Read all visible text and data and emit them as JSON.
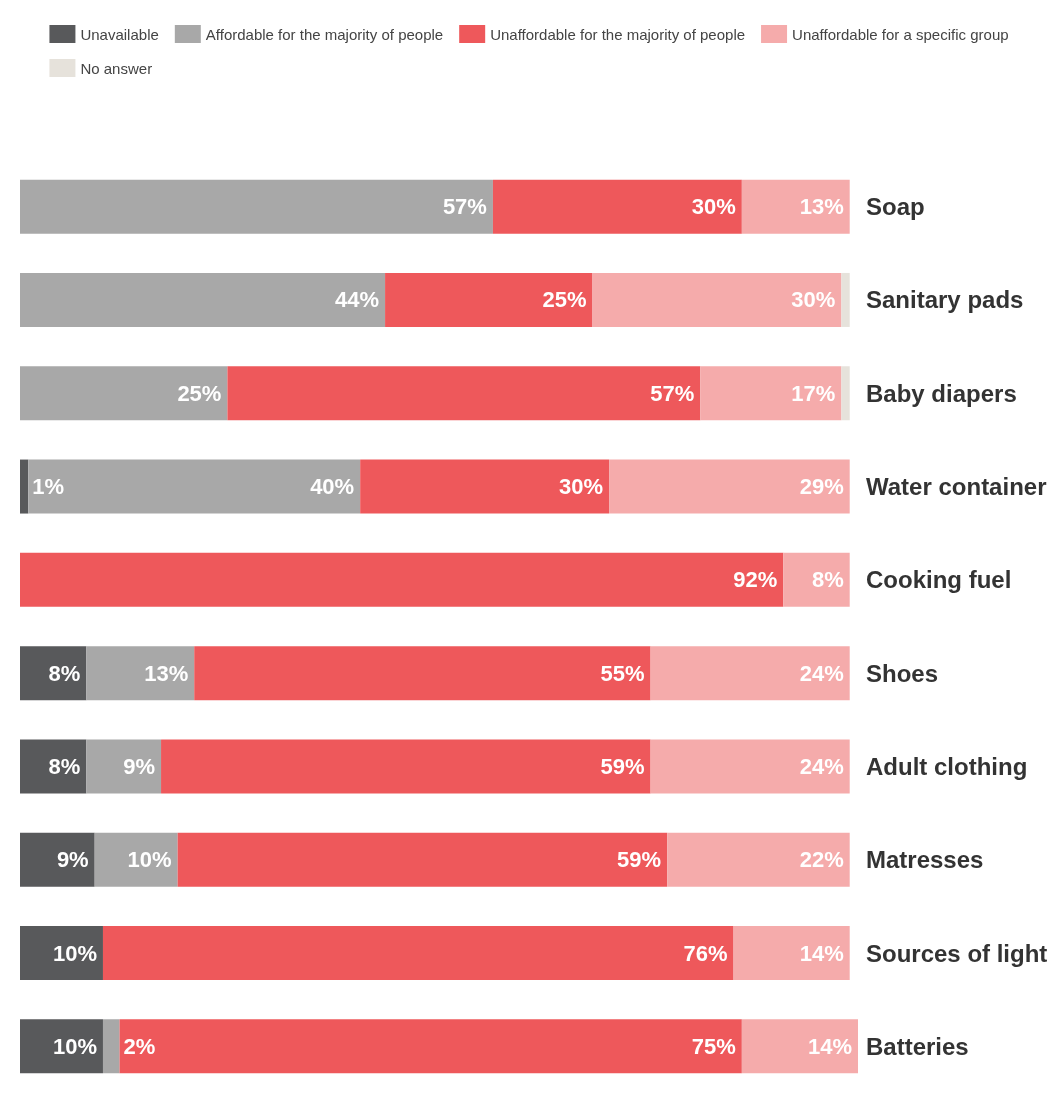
{
  "chart_data": {
    "type": "bar",
    "orientation": "horizontal",
    "stacked": true,
    "legend": "top",
    "categories": [
      "Soap",
      "Sanitary pads",
      "Baby diapers",
      "Water container",
      "Cooking fuel",
      "Shoes",
      "Adult clothing",
      "Matresses",
      "Sources of light",
      "Batteries"
    ],
    "series": [
      {
        "name": "Unavailable",
        "color": "#58595b",
        "values": [
          null,
          null,
          null,
          1,
          null,
          8,
          8,
          9,
          10,
          10
        ],
        "value_labels": [
          null,
          null,
          null,
          "1%",
          null,
          "8%",
          "8%",
          "9%",
          "10%",
          "10%"
        ]
      },
      {
        "name": "Affordable for the majority of people",
        "color": "#a8a8a8",
        "values": [
          57,
          44,
          25,
          40,
          null,
          13,
          9,
          10,
          null,
          2
        ],
        "value_labels": [
          "57%",
          "44%",
          "25%",
          "40%",
          null,
          "13%",
          "9%",
          "10%",
          null,
          "2%"
        ]
      },
      {
        "name": "Unaffordable for the majority of people",
        "color": "#ee585b",
        "values": [
          30,
          25,
          57,
          30,
          92,
          55,
          59,
          59,
          76,
          75
        ],
        "value_labels": [
          "30%",
          "25%",
          "57%",
          "30%",
          "92%",
          "55%",
          "59%",
          "59%",
          "76%",
          "75%"
        ]
      },
      {
        "name": "Unaffordable for a specific group",
        "color": "#f5abab",
        "values": [
          13,
          30,
          17,
          29,
          8,
          24,
          24,
          22,
          14,
          14
        ],
        "value_labels": [
          "13%",
          "30%",
          "17%",
          "29%",
          "8%",
          "24%",
          "24%",
          "22%",
          "14%",
          "14%"
        ]
      },
      {
        "name": "No answer",
        "color": "#e6e2db",
        "values": [
          null,
          1,
          1,
          null,
          null,
          null,
          null,
          null,
          null,
          null
        ],
        "value_labels": [
          null,
          null,
          null,
          null,
          null,
          null,
          null,
          null,
          null,
          null
        ]
      }
    ]
  }
}
